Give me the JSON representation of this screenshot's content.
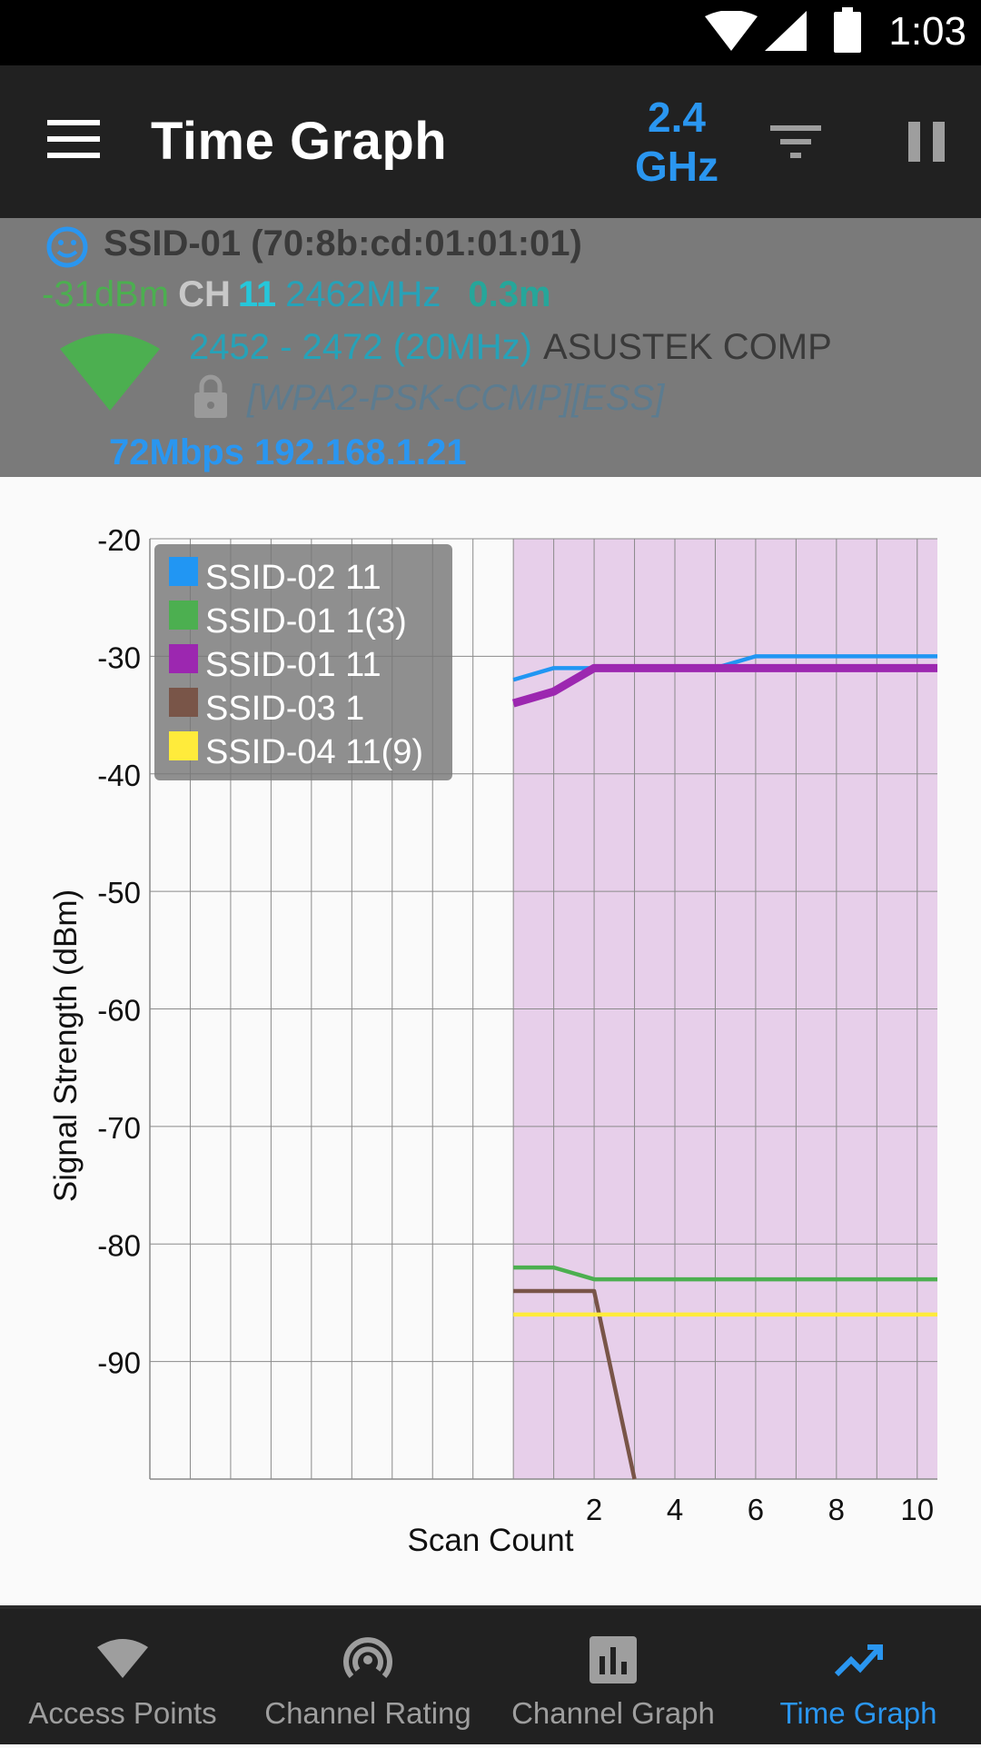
{
  "status_bar": {
    "time": "1:03"
  },
  "app_bar": {
    "title": "Time Graph",
    "band_line1": "2.4",
    "band_line2": "GHz"
  },
  "connection": {
    "ssid_line": "SSID-01 (70:8b:cd:01:01:01)",
    "level": "-31dBm",
    "ch_label": "CH",
    "channel": "11",
    "frequency": "2462MHz",
    "distance": "0.3m",
    "range": "2452 - 2472 (20MHz)",
    "vendor": "ASUSTEK COMP",
    "security": "[WPA2-PSK-CCMP][ESS]",
    "link": "72Mbps 192.168.1.21"
  },
  "chart_data": {
    "type": "line",
    "title": "",
    "xlabel": "Scan Count",
    "ylabel": "Signal Strength (dBm)",
    "ylim": [
      -100,
      -20
    ],
    "xlim": [
      -9,
      10.5
    ],
    "yticks": [
      "-20",
      "-30",
      "-40",
      "-50",
      "-60",
      "-70",
      "-80",
      "-90"
    ],
    "ytick_values": [
      -20,
      -30,
      -40,
      -50,
      -60,
      -70,
      -80,
      -90
    ],
    "xticks": [
      "2",
      "4",
      "6",
      "8",
      "10"
    ],
    "xtick_values": [
      2,
      4,
      6,
      8,
      10
    ],
    "grid": true,
    "legend_position": "top-left",
    "highlight_series": "SSID-01 11",
    "highlight_fill_color": "#e7cfea",
    "series": [
      {
        "name": "SSID-02 11",
        "color": "#2196f3",
        "x": [
          0,
          1,
          2,
          3,
          4,
          5,
          6,
          7,
          8,
          9,
          10,
          10.5
        ],
        "y": [
          -32,
          -31,
          -31,
          -31,
          -31,
          -31,
          -30,
          -30,
          -30,
          -30,
          -30,
          -30
        ]
      },
      {
        "name": "SSID-01 1(3)",
        "color": "#4caf50",
        "x": [
          0,
          1,
          2,
          3,
          4,
          5,
          6,
          7,
          8,
          9,
          10,
          10.5
        ],
        "y": [
          -82,
          -82,
          -83,
          -83,
          -83,
          -83,
          -83,
          -83,
          -83,
          -83,
          -83,
          -83
        ]
      },
      {
        "name": "SSID-01 11",
        "color": "#9c27b0",
        "x": [
          0,
          1,
          2,
          3,
          4,
          5,
          6,
          7,
          8,
          9,
          10,
          10.5
        ],
        "y": [
          -34,
          -33,
          -31,
          -31,
          -31,
          -31,
          -31,
          -31,
          -31,
          -31,
          -31,
          -31
        ]
      },
      {
        "name": "SSID-03 1",
        "color": "#795548",
        "x": [
          0,
          1,
          2,
          3
        ],
        "y": [
          -84,
          -84,
          -84,
          -100
        ]
      },
      {
        "name": "SSID-04 11(9)",
        "color": "#ffeb3b",
        "x": [
          0,
          1,
          2,
          3,
          4,
          5,
          6,
          7,
          8,
          9,
          10,
          10.5
        ],
        "y": [
          -86,
          -86,
          -86,
          -86,
          -86,
          -86,
          -86,
          -86,
          -86,
          -86,
          -86,
          -86
        ]
      }
    ]
  },
  "bottom_nav": {
    "items": [
      {
        "label": "Access Points",
        "icon": "wifi-icon",
        "active": false
      },
      {
        "label": "Channel Rating",
        "icon": "radar-icon",
        "active": false
      },
      {
        "label": "Channel Graph",
        "icon": "bar-chart-icon",
        "active": false
      },
      {
        "label": "Time Graph",
        "icon": "trending-icon",
        "active": true
      }
    ]
  }
}
